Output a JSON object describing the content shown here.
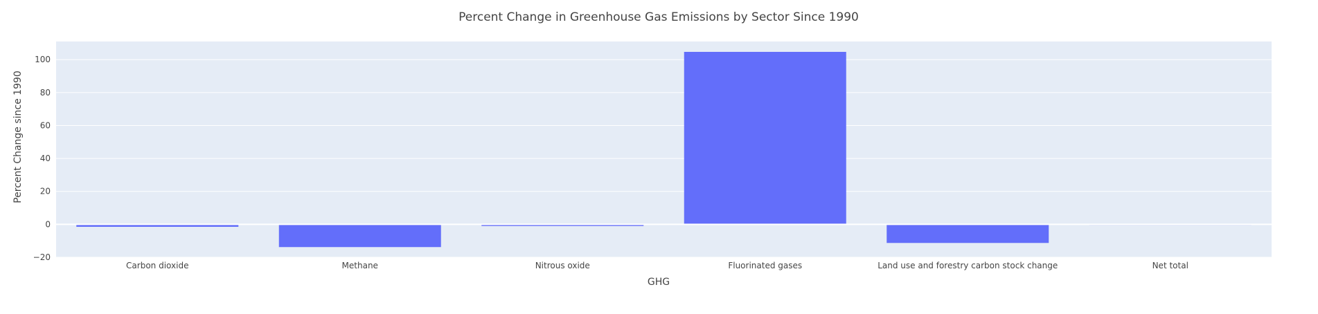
{
  "chart_data": {
    "type": "bar",
    "title": "Percent Change in Greenhouse Gas Emissions by Sector Since 1990",
    "xlabel": "GHG",
    "ylabel": "Percent Change since 1990",
    "categories": [
      "Carbon dioxide",
      "Methane",
      "Nitrous oxide",
      "Fluorinated gases",
      "Land use and forestry carbon stock change",
      "Net total"
    ],
    "values": [
      -1.5,
      -13.8,
      -1.0,
      104.7,
      -11.3,
      -0.4
    ],
    "ylim": [
      -20,
      111
    ],
    "yticks": [
      -20,
      0,
      20,
      40,
      60,
      80,
      100
    ],
    "grid": true,
    "legend": "none",
    "colors": {
      "bar": "#636efa",
      "plot_bg": "#e5ecf6",
      "grid": "#ffffff",
      "text": "#444444"
    }
  }
}
